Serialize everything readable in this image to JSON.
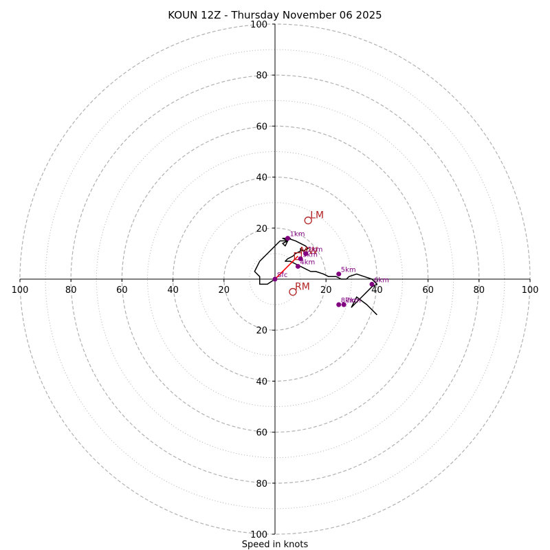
{
  "title": "KOUN 12Z - Thursday November 06 2025",
  "colors": {
    "hodograph": "#000000",
    "height_marker": "#800080",
    "motion": "#b22222",
    "shear_vector": "#ff0000",
    "grid": "#b0b0b0",
    "axis": "#000000"
  },
  "chart_data": {
    "type": "hodograph",
    "title": "KOUN 12Z - Thursday November 06 2025",
    "xlabel": "Speed in knots",
    "ylabel": "",
    "xlim": [
      -100,
      100
    ],
    "ylim": [
      -100,
      100
    ],
    "ring_labels": [
      "20",
      "40",
      "60",
      "80",
      "100"
    ],
    "rings_dashed": [
      20,
      40,
      60,
      80,
      100
    ],
    "rings_dotted": [
      10,
      30,
      50,
      70,
      90
    ],
    "x_tick_values": [
      -100,
      -80,
      -60,
      -40,
      -20,
      20,
      40,
      60,
      80,
      100
    ],
    "y_tick_values": [
      100,
      80,
      60,
      40,
      20,
      -20,
      -40,
      -60,
      -80,
      -100
    ],
    "tick_labels": [
      "100",
      "80",
      "60",
      "40",
      "20",
      "20",
      "40",
      "60",
      "80",
      "100"
    ],
    "hodograph": {
      "u": [
        0,
        -3,
        -6,
        -6,
        -8,
        -6,
        -4,
        2,
        5,
        4,
        3,
        5,
        3,
        5,
        6,
        4,
        3,
        5,
        8,
        10,
        12,
        13,
        11,
        10,
        10,
        8,
        7,
        5,
        4,
        4,
        6,
        8,
        10,
        12,
        14,
        16,
        19,
        21,
        24,
        26,
        28,
        29,
        32,
        35,
        38,
        40,
        38,
        36,
        34,
        32,
        30,
        32,
        36,
        40
      ],
      "v": [
        0,
        -2,
        -2,
        1,
        3,
        7,
        9,
        15,
        15,
        13,
        14,
        15,
        16,
        16,
        16,
        16,
        16,
        16,
        15,
        14,
        13,
        12,
        11,
        12,
        11,
        10,
        9,
        8,
        7,
        7,
        7,
        6,
        5,
        4,
        3,
        3,
        2,
        1,
        1,
        0,
        0,
        1,
        2,
        1,
        0,
        -2,
        -3,
        -5,
        -7,
        -9,
        -11,
        -7,
        -10,
        -14
      ]
    },
    "height_markers": [
      {
        "label": "Sfc",
        "u": 0,
        "v": 0
      },
      {
        "label": "1km",
        "u": 5,
        "v": 16
      },
      {
        "label": "2km",
        "u": 12,
        "v": 10
      },
      {
        "label": "3km",
        "u": 10,
        "v": 8
      },
      {
        "label": "4km",
        "u": 9,
        "v": 5
      },
      {
        "label": "5km",
        "u": 25,
        "v": 2
      },
      {
        "label": "6km",
        "u": 38,
        "v": -2
      },
      {
        "label": "7km",
        "u": 27,
        "v": -10
      },
      {
        "label": "8km",
        "u": 25,
        "v": -10
      }
    ],
    "storm_motions": [
      {
        "label": "LM",
        "u": 13,
        "v": 23,
        "marker": "circle"
      },
      {
        "label": "MW",
        "u": 9,
        "v": 9,
        "marker": "square"
      },
      {
        "label": "RM",
        "u": 7,
        "v": -5,
        "marker": "circle"
      }
    ],
    "shear_vector": {
      "from": {
        "u": 0,
        "v": 0
      },
      "to": {
        "u": 9,
        "v": 9
      }
    }
  }
}
